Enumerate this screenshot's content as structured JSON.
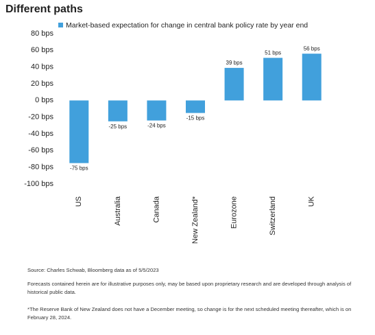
{
  "chart_data": {
    "type": "bar",
    "title": "Different paths",
    "legend": "Market-based expectation for change in central bank policy rate by year end",
    "categories": [
      "US",
      "Australia",
      "Canada",
      "New Zealand*",
      "Eurozone",
      "Switzerland",
      "UK"
    ],
    "values": [
      -75,
      -25,
      -24,
      -15,
      39,
      51,
      56
    ],
    "value_labels": [
      "-75 bps",
      "-25 bps",
      "-24 bps",
      "-15 bps",
      "39 bps",
      "51 bps",
      "56 bps"
    ],
    "color": "#41a0dc",
    "ylim": [
      -100,
      80
    ],
    "yticks": [
      {
        "value": 80,
        "label": "80 bps"
      },
      {
        "value": 60,
        "label": "60 bps"
      },
      {
        "value": 40,
        "label": "40 bps"
      },
      {
        "value": 20,
        "label": "20 bps"
      },
      {
        "value": 0,
        "label": "0 bps"
      },
      {
        "value": -20,
        "label": "-20 bps"
      },
      {
        "value": -40,
        "label": "-40 bps"
      },
      {
        "value": -60,
        "label": "-60 bps"
      },
      {
        "value": -80,
        "label": "-80 bps"
      },
      {
        "value": -100,
        "label": "-100 bps"
      }
    ],
    "grid": false,
    "notes": [
      "Source: Charles Schwab, Bloomberg data as of 5/5/2023",
      "Forecasts contained herein are for illustrative purposes only, may be based upon proprietary research and are developed through analysis of historical public data.",
      "*The Reserve Bank of New Zealand does not have a December meeting, so change is for the next scheduled meeting thereafter, which is on February 28, 2024."
    ]
  }
}
